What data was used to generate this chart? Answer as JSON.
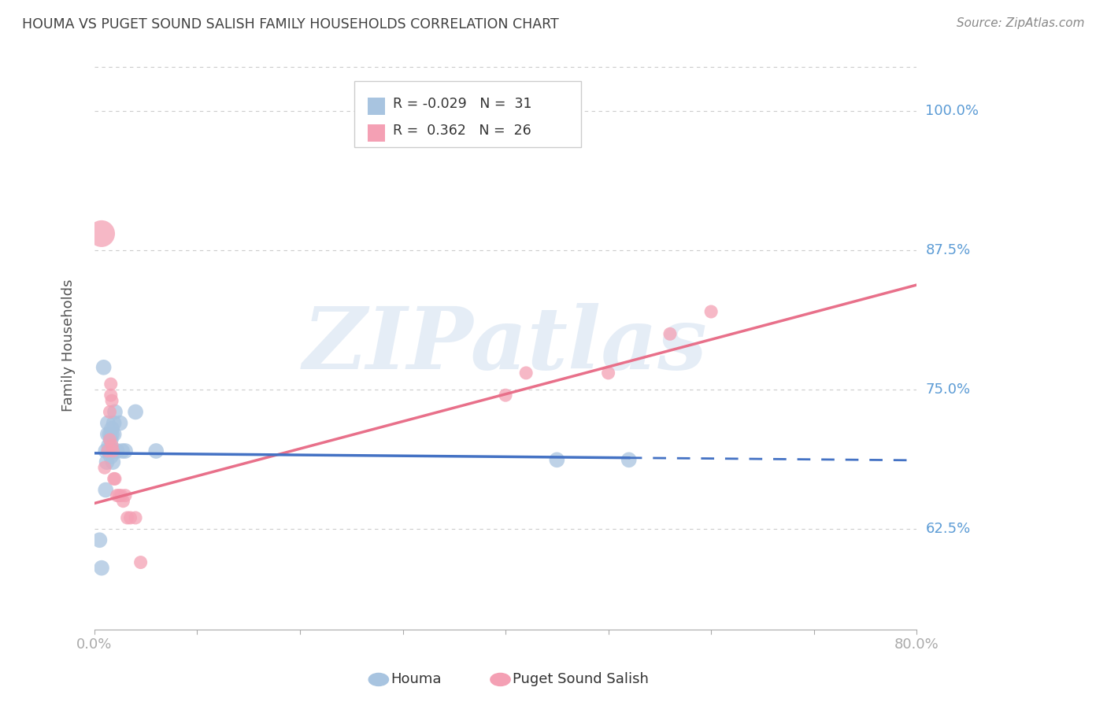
{
  "title": "HOUMA VS PUGET SOUND SALISH FAMILY HOUSEHOLDS CORRELATION CHART",
  "source": "Source: ZipAtlas.com",
  "ylabel": "Family Households",
  "ylabel_ticks": [
    0.625,
    0.75,
    0.875,
    1.0
  ],
  "ylabel_labels": [
    "62.5%",
    "75.0%",
    "87.5%",
    "100.0%"
  ],
  "xlabel_ticks": [
    0.0,
    0.1,
    0.2,
    0.3,
    0.4,
    0.5,
    0.6,
    0.7,
    0.8
  ],
  "xlabel_labels": [
    "0.0%",
    "",
    "",
    "",
    "",
    "",
    "",
    "",
    "80.0%"
  ],
  "xmin": 0.0,
  "xmax": 0.8,
  "ymin": 0.535,
  "ymax": 1.045,
  "houma_color": "#a8c4e0",
  "puget_color": "#f4a0b4",
  "houma_trend_color": "#4472c4",
  "puget_trend_color": "#e8708a",
  "legend_line1": "R = -0.029   N = 31",
  "legend_line2": "R =  0.362   N = 26",
  "watermark_text": "ZIPatlas",
  "background_color": "#ffffff",
  "grid_color": "#cccccc",
  "tick_label_color": "#5b9bd5",
  "title_color": "#404040",
  "houma_x": [
    0.005,
    0.007,
    0.009,
    0.011,
    0.011,
    0.012,
    0.013,
    0.013,
    0.014,
    0.014,
    0.015,
    0.015,
    0.016,
    0.016,
    0.016,
    0.017,
    0.017,
    0.018,
    0.018,
    0.018,
    0.019,
    0.019,
    0.02,
    0.022,
    0.025,
    0.027,
    0.03,
    0.04,
    0.06,
    0.45,
    0.52
  ],
  "houma_y": [
    0.615,
    0.59,
    0.77,
    0.695,
    0.66,
    0.685,
    0.71,
    0.72,
    0.695,
    0.7,
    0.695,
    0.71,
    0.69,
    0.695,
    0.705,
    0.715,
    0.71,
    0.685,
    0.695,
    0.695,
    0.71,
    0.72,
    0.73,
    0.695,
    0.72,
    0.695,
    0.695,
    0.73,
    0.695,
    0.687,
    0.687
  ],
  "houma_sizes": [
    150,
    150,
    150,
    150,
    150,
    150,
    150,
    150,
    150,
    150,
    150,
    150,
    150,
    150,
    150,
    150,
    150,
    150,
    150,
    150,
    150,
    150,
    150,
    150,
    150,
    150,
    150,
    150,
    150,
    150,
    150
  ],
  "puget_x": [
    0.007,
    0.01,
    0.013,
    0.015,
    0.015,
    0.016,
    0.016,
    0.017,
    0.017,
    0.018,
    0.019,
    0.02,
    0.022,
    0.024,
    0.026,
    0.028,
    0.03,
    0.032,
    0.035,
    0.04,
    0.045,
    0.4,
    0.42,
    0.5,
    0.56,
    0.6
  ],
  "puget_y": [
    0.89,
    0.68,
    0.695,
    0.705,
    0.73,
    0.745,
    0.755,
    0.74,
    0.7,
    0.695,
    0.67,
    0.67,
    0.655,
    0.655,
    0.655,
    0.65,
    0.655,
    0.635,
    0.635,
    0.635,
    0.595,
    0.745,
    0.765,
    0.765,
    0.8,
    0.82
  ],
  "puget_sizes": [
    600,
    150,
    150,
    150,
    150,
    150,
    150,
    150,
    150,
    150,
    150,
    150,
    150,
    150,
    150,
    150,
    150,
    150,
    150,
    150,
    150,
    150,
    150,
    150,
    150,
    150
  ],
  "houma_trend_x0": 0.0,
  "houma_trend_x_solid_end": 0.52,
  "houma_trend_x1": 0.8,
  "puget_trend_x0": 0.0,
  "puget_trend_x1": 0.8,
  "houma_intercept": 0.693,
  "houma_slope": -0.008,
  "puget_intercept": 0.648,
  "puget_slope": 0.245
}
